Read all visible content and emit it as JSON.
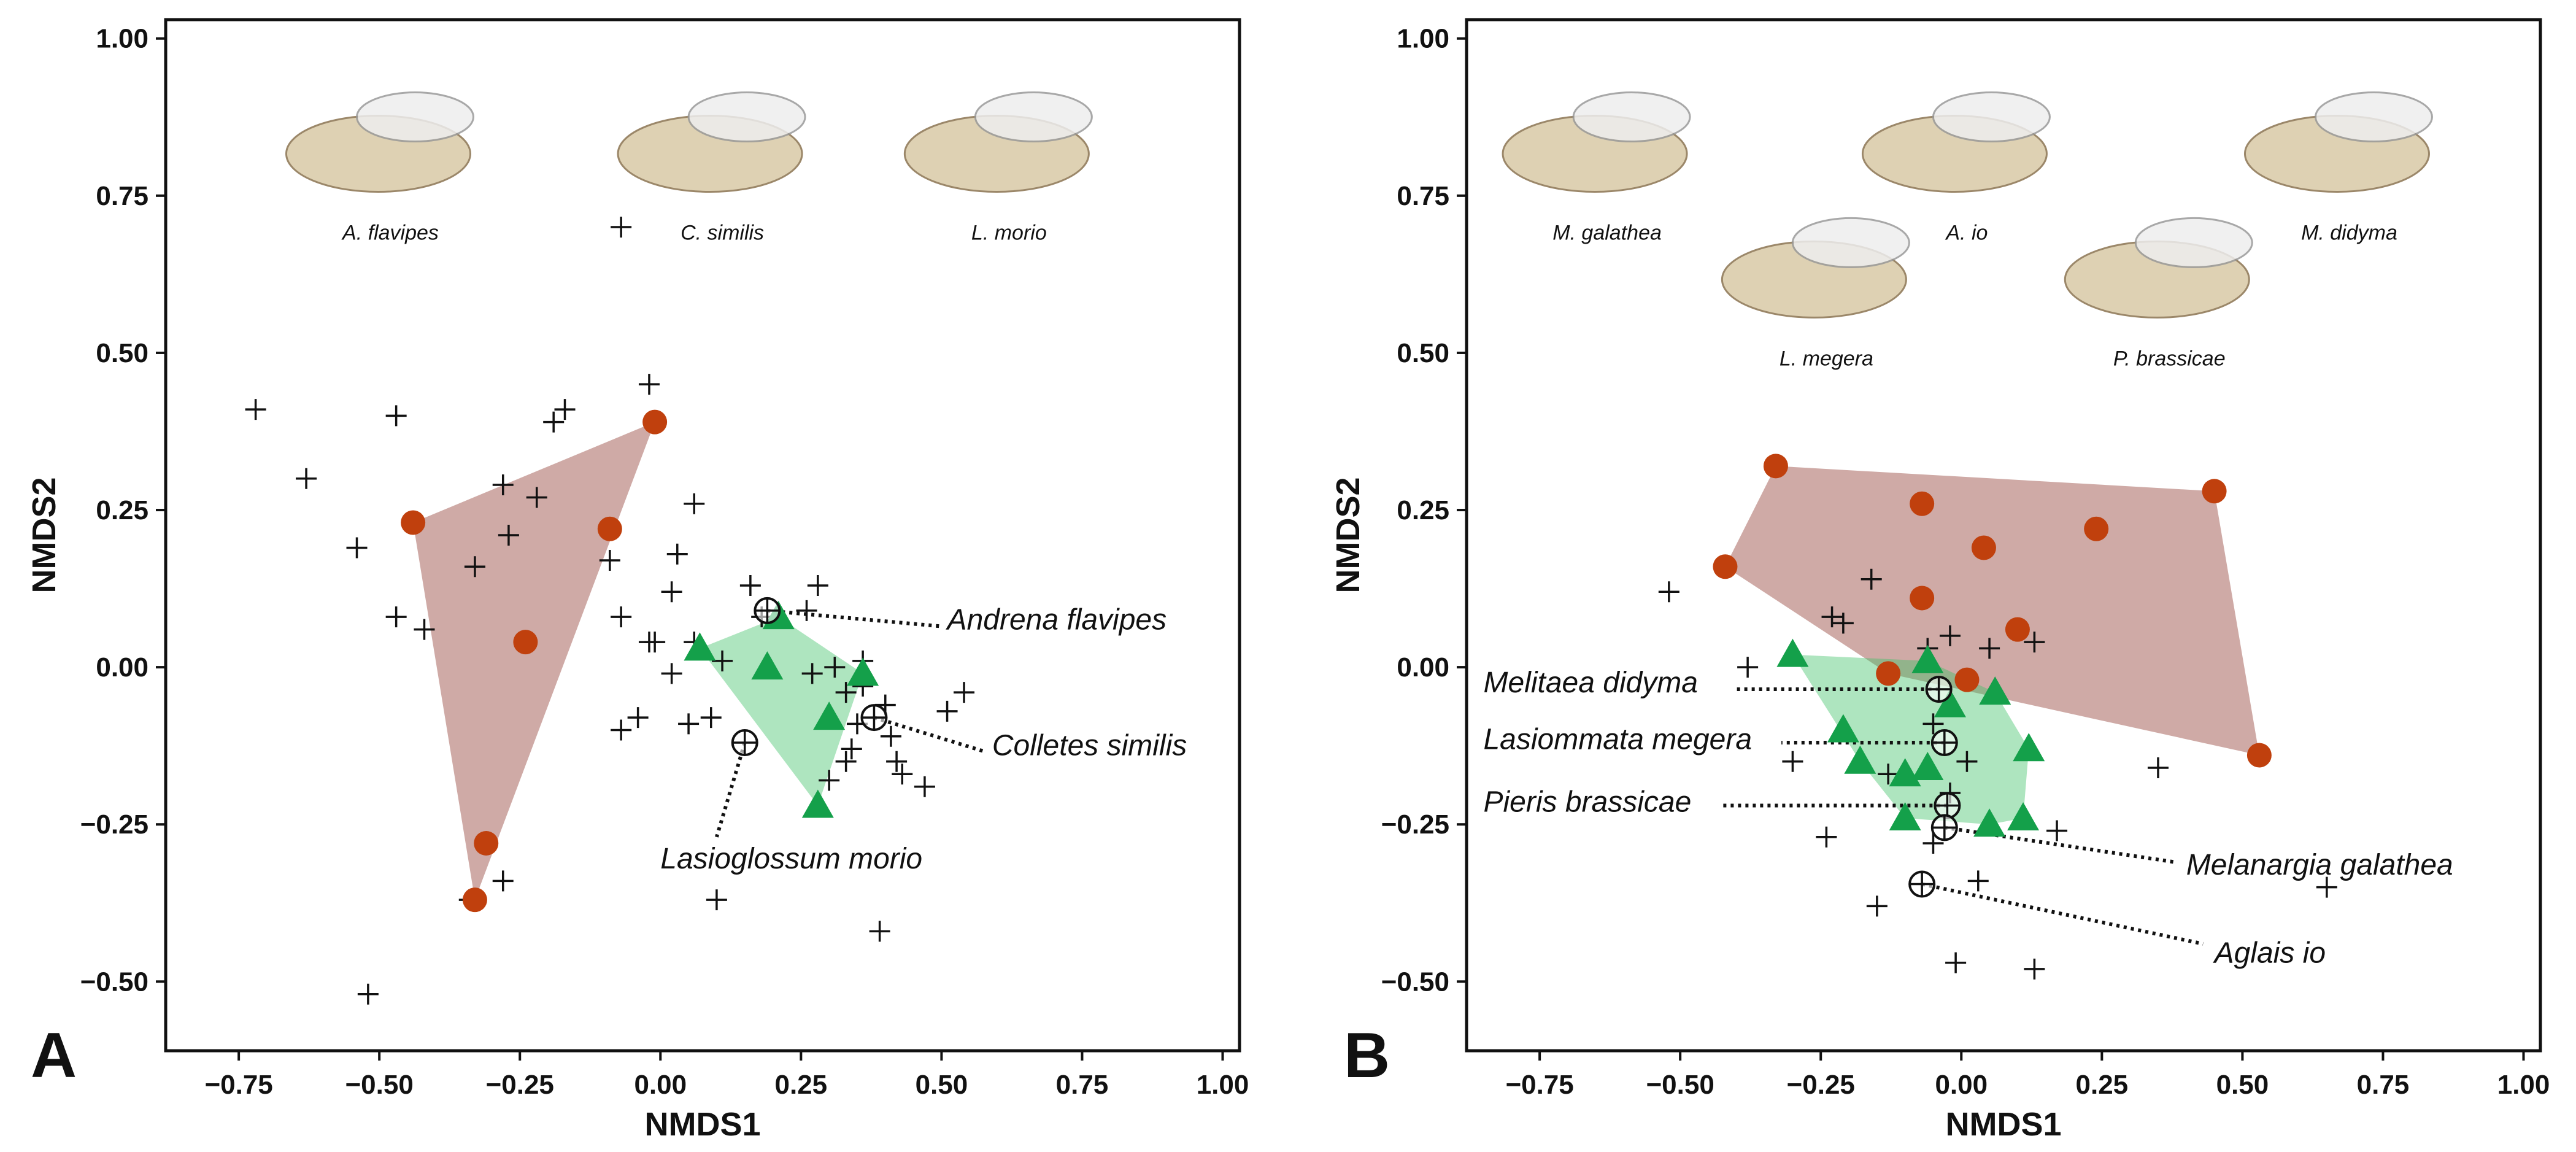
{
  "colors": {
    "hull_a": "#a0554d",
    "hull_b": "#3ec066",
    "group_a": "#c0400d",
    "group_b": "#14a04a",
    "species_marker": "#111111",
    "frame": "#111111"
  },
  "chart_data": [
    {
      "type": "scatter",
      "panel_label": "A",
      "xlabel": "NMDS1",
      "ylabel": "NMDS2",
      "xlim": [
        -0.88,
        1.03
      ],
      "ylim": [
        -0.61,
        1.03
      ],
      "xticks": [
        -0.75,
        -0.5,
        -0.25,
        0.0,
        0.25,
        0.5,
        0.75,
        1.0
      ],
      "yticks": [
        -0.5,
        -0.25,
        0.0,
        0.25,
        0.5,
        0.75,
        1.0
      ],
      "xtick_labels": [
        "−0.75",
        "−0.50",
        "−0.25",
        "0.00",
        "0.25",
        "0.50",
        "0.75",
        "1.00"
      ],
      "ytick_labels": [
        "−0.50",
        "−0.25",
        "0.00",
        "0.25",
        "0.50",
        "0.75",
        "1.00"
      ],
      "grid": false,
      "image_captions": [
        {
          "name": "andrena-flavipes-photo",
          "label": "A. flavipes",
          "x": -0.48,
          "y": 0.68
        },
        {
          "name": "colletes-similis-photo",
          "label": "C. similis",
          "x": 0.11,
          "y": 0.68
        },
        {
          "name": "lasioglossum-morio-photo",
          "label": "L. morio",
          "x": 0.62,
          "y": 0.68
        }
      ],
      "series": [
        {
          "name": "plant-points",
          "marker": "plus",
          "points": [
            [
              -0.72,
              0.41
            ],
            [
              -0.63,
              0.3
            ],
            [
              -0.54,
              0.19
            ],
            [
              -0.47,
              0.4
            ],
            [
              -0.47,
              0.08
            ],
            [
              -0.42,
              0.06
            ],
            [
              -0.33,
              0.16
            ],
            [
              -0.28,
              0.29
            ],
            [
              -0.27,
              0.21
            ],
            [
              -0.22,
              0.27
            ],
            [
              -0.19,
              0.39
            ],
            [
              -0.17,
              0.41
            ],
            [
              -0.09,
              0.17
            ],
            [
              -0.07,
              0.08
            ],
            [
              -0.02,
              0.45
            ],
            [
              -0.07,
              0.7
            ],
            [
              -0.07,
              -0.1
            ],
            [
              -0.04,
              -0.08
            ],
            [
              -0.02,
              0.04
            ],
            [
              -0.01,
              0.04
            ],
            [
              0.02,
              0.12
            ],
            [
              0.03,
              0.18
            ],
            [
              0.02,
              -0.01
            ],
            [
              0.05,
              -0.09
            ],
            [
              0.06,
              0.26
            ],
            [
              0.06,
              0.04
            ],
            [
              0.09,
              -0.08
            ],
            [
              0.11,
              0.01
            ],
            [
              0.16,
              0.13
            ],
            [
              0.18,
              0.08
            ],
            [
              0.26,
              0.09
            ],
            [
              0.27,
              -0.01
            ],
            [
              0.28,
              0.13
            ],
            [
              0.3,
              -0.18
            ],
            [
              0.31,
              0.0
            ],
            [
              0.33,
              -0.04
            ],
            [
              0.33,
              -0.15
            ],
            [
              0.34,
              -0.13
            ],
            [
              0.35,
              -0.09
            ],
            [
              0.36,
              0.01
            ],
            [
              0.36,
              -0.03
            ],
            [
              0.4,
              -0.06
            ],
            [
              0.41,
              -0.11
            ],
            [
              0.42,
              -0.15
            ],
            [
              0.43,
              -0.17
            ],
            [
              0.47,
              -0.19
            ],
            [
              0.51,
              -0.07
            ],
            [
              0.54,
              -0.04
            ],
            [
              0.1,
              -0.37
            ],
            [
              0.39,
              -0.42
            ],
            [
              -0.34,
              -0.37
            ],
            [
              -0.28,
              -0.34
            ],
            [
              -0.52,
              -0.52
            ]
          ]
        },
        {
          "name": "species-markers",
          "marker": "circle-plus",
          "points": [
            [
              0.19,
              0.09
            ],
            [
              0.38,
              -0.08
            ],
            [
              0.15,
              -0.12
            ]
          ]
        },
        {
          "name": "group-a",
          "marker": "circle",
          "hull": true,
          "points": [
            [
              -0.01,
              0.39
            ],
            [
              -0.44,
              0.23
            ],
            [
              -0.33,
              -0.37
            ],
            [
              -0.31,
              -0.28
            ],
            [
              -0.24,
              0.04
            ],
            [
              -0.09,
              0.22
            ]
          ]
        },
        {
          "name": "group-b",
          "marker": "triangle",
          "hull": true,
          "points": [
            [
              0.07,
              0.03
            ],
            [
              0.21,
              0.08
            ],
            [
              0.36,
              -0.01
            ],
            [
              0.3,
              -0.08
            ],
            [
              0.28,
              -0.22
            ],
            [
              0.19,
              0.0
            ]
          ]
        }
      ],
      "annotations": [
        {
          "label": "Andrena flavipes",
          "point": [
            0.19,
            0.09
          ],
          "text_xy": [
            0.51,
            0.06
          ],
          "anchor": "start",
          "line_end": [
            0.5,
            0.065
          ]
        },
        {
          "label": "Colletes similis",
          "point": [
            0.38,
            -0.08
          ],
          "text_xy": [
            0.59,
            -0.14
          ],
          "anchor": "start",
          "line_end": [
            0.58,
            -0.135
          ]
        },
        {
          "label": "Lasioglossum morio",
          "point": [
            0.15,
            -0.12
          ],
          "text_xy": [
            0.0,
            -0.32
          ],
          "anchor": "start",
          "line_end": [
            0.1,
            -0.27
          ]
        }
      ]
    },
    {
      "type": "scatter",
      "panel_label": "B",
      "xlabel": "NMDS1",
      "ylabel": "NMDS2",
      "xlim": [
        -0.88,
        1.03
      ],
      "ylim": [
        -0.61,
        1.03
      ],
      "xticks": [
        -0.75,
        -0.5,
        -0.25,
        0.0,
        0.25,
        0.5,
        0.75,
        1.0
      ],
      "yticks": [
        -0.5,
        -0.25,
        0.0,
        0.25,
        0.5,
        0.75,
        1.0
      ],
      "xtick_labels": [
        "−0.75",
        "−0.50",
        "−0.25",
        "0.00",
        "0.25",
        "0.50",
        "0.75",
        "1.00"
      ],
      "ytick_labels": [
        "−0.50",
        "−0.25",
        "0.00",
        "0.25",
        "0.50",
        "0.75",
        "1.00"
      ],
      "grid": false,
      "image_captions": [
        {
          "name": "melanargia-galathea-photo",
          "label": "M. galathea",
          "x": -0.63,
          "y": 0.68
        },
        {
          "name": "aglais-io-photo",
          "label": "A. io",
          "x": 0.01,
          "y": 0.68
        },
        {
          "name": "melitaea-didyma-photo",
          "label": "M. didyma",
          "x": 0.69,
          "y": 0.68
        },
        {
          "name": "lasiommata-megera-photo",
          "label": "L. megera",
          "x": -0.24,
          "y": 0.48
        },
        {
          "name": "pieris-brassicae-photo",
          "label": "P. brassicae",
          "x": 0.37,
          "y": 0.48
        }
      ],
      "series": [
        {
          "name": "plant-points",
          "marker": "plus",
          "points": [
            [
              -0.52,
              0.12
            ],
            [
              -0.38,
              0.0
            ],
            [
              -0.23,
              0.08
            ],
            [
              -0.21,
              0.07
            ],
            [
              -0.16,
              0.14
            ],
            [
              -0.06,
              0.03
            ],
            [
              -0.02,
              0.05
            ],
            [
              0.05,
              0.03
            ],
            [
              0.13,
              0.04
            ],
            [
              -0.3,
              -0.15
            ],
            [
              -0.24,
              -0.27
            ],
            [
              -0.15,
              -0.38
            ],
            [
              -0.13,
              -0.17
            ],
            [
              -0.05,
              -0.28
            ],
            [
              0.03,
              -0.34
            ],
            [
              0.17,
              -0.26
            ],
            [
              0.35,
              -0.16
            ],
            [
              0.65,
              -0.35
            ],
            [
              -0.01,
              -0.47
            ],
            [
              0.13,
              -0.48
            ],
            [
              -0.05,
              -0.09
            ],
            [
              0.01,
              -0.15
            ],
            [
              -0.02,
              -0.2
            ]
          ]
        },
        {
          "name": "species-markers",
          "marker": "circle-plus",
          "points": [
            [
              -0.04,
              -0.035
            ],
            [
              -0.03,
              -0.12
            ],
            [
              -0.025,
              -0.22
            ],
            [
              -0.03,
              -0.255
            ],
            [
              -0.07,
              -0.345
            ]
          ]
        },
        {
          "name": "group-a",
          "marker": "circle",
          "hull": true,
          "points": [
            [
              -0.42,
              0.16
            ],
            [
              -0.33,
              0.32
            ],
            [
              0.45,
              0.28
            ],
            [
              0.53,
              -0.14
            ],
            [
              -0.13,
              -0.01
            ],
            [
              -0.07,
              0.26
            ],
            [
              0.04,
              0.19
            ],
            [
              0.24,
              0.22
            ],
            [
              -0.07,
              0.11
            ],
            [
              0.1,
              0.06
            ],
            [
              0.01,
              -0.02
            ]
          ]
        },
        {
          "name": "group-b",
          "marker": "triangle",
          "hull": true,
          "points": [
            [
              -0.3,
              0.02
            ],
            [
              -0.06,
              0.01
            ],
            [
              0.06,
              -0.04
            ],
            [
              0.12,
              -0.13
            ],
            [
              0.11,
              -0.24
            ],
            [
              0.05,
              -0.25
            ],
            [
              -0.1,
              -0.24
            ],
            [
              -0.18,
              -0.15
            ],
            [
              -0.21,
              -0.1
            ],
            [
              -0.02,
              -0.06
            ],
            [
              -0.1,
              -0.17
            ],
            [
              -0.06,
              -0.16
            ]
          ]
        }
      ],
      "annotations": [
        {
          "label": "Melitaea didyma",
          "point": [
            -0.04,
            -0.035
          ],
          "text_xy": [
            -0.85,
            -0.04
          ],
          "anchor": "start",
          "line_end": [
            -0.4,
            -0.035
          ]
        },
        {
          "label": "Lasiommata megera",
          "point": [
            -0.03,
            -0.12
          ],
          "text_xy": [
            -0.85,
            -0.13
          ],
          "anchor": "start",
          "line_end": [
            -0.32,
            -0.12
          ]
        },
        {
          "label": "Pieris brassicae",
          "point": [
            -0.025,
            -0.22
          ],
          "text_xy": [
            -0.85,
            -0.23
          ],
          "anchor": "start",
          "line_end": [
            -0.43,
            -0.22
          ]
        },
        {
          "label": "Melanargia galathea",
          "point": [
            -0.03,
            -0.255
          ],
          "text_xy": [
            0.4,
            -0.33
          ],
          "anchor": "start",
          "line_end": [
            0.38,
            -0.31
          ]
        },
        {
          "label": "Aglais io",
          "point": [
            -0.07,
            -0.345
          ],
          "text_xy": [
            0.45,
            -0.47
          ],
          "anchor": "start",
          "line_end": [
            0.43,
            -0.44
          ]
        }
      ]
    }
  ]
}
